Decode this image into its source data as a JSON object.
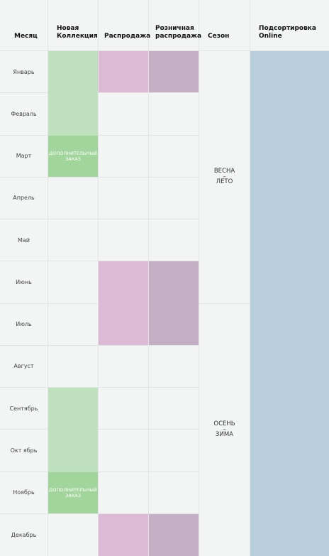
{
  "headers": {
    "month": "Месяц",
    "new_collection_line1": "Новая",
    "new_collection_line2": "Коллекция",
    "sale": "Распродажа",
    "retail_sale_line1": "Розничная",
    "retail_sale_line2": "распродажа",
    "season": "Сезон",
    "online_line1": "Подсортировка",
    "online_line2": "Online"
  },
  "months": [
    "Январь",
    "Февраль",
    "Март",
    "Апрель",
    "Май",
    "Июнь",
    "Июль",
    "Август",
    "Сентябрь",
    "Окт ябрь",
    "Ноябрь",
    "Декабрь"
  ],
  "additional_order": "ДОПОЛНИТЕЛЬНЫЙ ЗАКАЗ",
  "seasons": {
    "spring_summer": {
      "top": "ВЕСНА",
      "dash": "–",
      "bottom": "ЛЕТО"
    },
    "autumn_winter": {
      "top": "ОСЕНЬ",
      "dash": "–",
      "bottom": "ЗИМА"
    }
  },
  "colors": {
    "new_collection": "#c0e1bd",
    "additional_order": "#a2d59c",
    "sale": "#dcbad6",
    "retail_sale": "#c5afc4",
    "online": "#b8cedd",
    "background": "#f3f4f4"
  }
}
